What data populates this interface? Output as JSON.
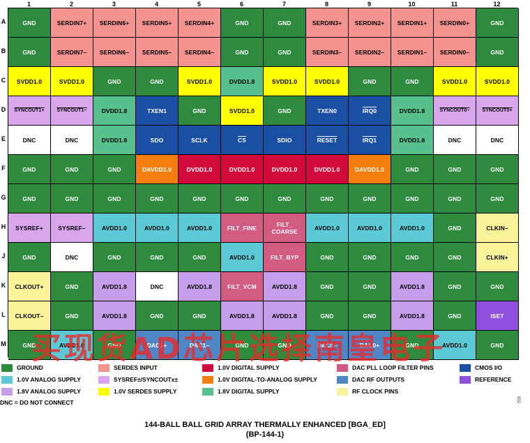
{
  "columns": [
    "1",
    "2",
    "3",
    "4",
    "5",
    "6",
    "7",
    "8",
    "9",
    "10",
    "11",
    "12"
  ],
  "rows": [
    "A",
    "B",
    "C",
    "D",
    "E",
    "F",
    "G",
    "H",
    "J",
    "K",
    "L",
    "M"
  ],
  "colors": {
    "ground": "#2e8b3e",
    "serdes_input": "#f4938f",
    "digital_1v0": "#d20a3c",
    "dac_pll_loop_filter": "#d35a80",
    "cmos_io": "#1b4fa3",
    "analog_1v0": "#5bc9d6",
    "sysref_syncout": "#d9a6ee",
    "dac_digital_1v0": "#f57f0e",
    "dac_rf_outputs": "#4f86c6",
    "reference": "#9050df",
    "analog_1v8": "#c59de8",
    "serdes_supply_1v0": "#ffff00",
    "digital_1v8": "#58c08c",
    "rf_clock": "#fbf39a",
    "dnc": "#ffffff"
  },
  "grid": [
    [
      {
        "t": "GND",
        "c": "ground"
      },
      {
        "t": "SERDIN7+",
        "c": "serdes_input"
      },
      {
        "t": "SERDIN6+",
        "c": "serdes_input"
      },
      {
        "t": "SERDIN5+",
        "c": "serdes_input"
      },
      {
        "t": "SERDIN4+",
        "c": "serdes_input"
      },
      {
        "t": "GND",
        "c": "ground"
      },
      {
        "t": "GND",
        "c": "ground"
      },
      {
        "t": "SERDIN3+",
        "c": "serdes_input"
      },
      {
        "t": "SERDIN2+",
        "c": "serdes_input"
      },
      {
        "t": "SERDIN1+",
        "c": "serdes_input"
      },
      {
        "t": "SERDIN0+",
        "c": "serdes_input"
      },
      {
        "t": "GND",
        "c": "ground"
      }
    ],
    [
      {
        "t": "GND",
        "c": "ground"
      },
      {
        "t": "SERDIN7–",
        "c": "serdes_input"
      },
      {
        "t": "SERDIN6–",
        "c": "serdes_input"
      },
      {
        "t": "SERDIN5–",
        "c": "serdes_input"
      },
      {
        "t": "SERDIN4–",
        "c": "serdes_input"
      },
      {
        "t": "GND",
        "c": "ground"
      },
      {
        "t": "GND",
        "c": "ground"
      },
      {
        "t": "SERDIN3–",
        "c": "serdes_input"
      },
      {
        "t": "SERDIN2–",
        "c": "serdes_input"
      },
      {
        "t": "SERDIN1–",
        "c": "serdes_input"
      },
      {
        "t": "SERDIN0–",
        "c": "serdes_input"
      },
      {
        "t": "GND",
        "c": "ground"
      }
    ],
    [
      {
        "t": "SVDD1.0",
        "c": "serdes_supply_1v0"
      },
      {
        "t": "SVDD1.0",
        "c": "serdes_supply_1v0"
      },
      {
        "t": "GND",
        "c": "ground"
      },
      {
        "t": "GND",
        "c": "ground"
      },
      {
        "t": "SVDD1.0",
        "c": "serdes_supply_1v0"
      },
      {
        "t": "DVDD1.8",
        "c": "digital_1v8"
      },
      {
        "t": "SVDD1.0",
        "c": "serdes_supply_1v0"
      },
      {
        "t": "SVDD1.0",
        "c": "serdes_supply_1v0"
      },
      {
        "t": "GND",
        "c": "ground"
      },
      {
        "t": "GND",
        "c": "ground"
      },
      {
        "t": "SVDD1.0",
        "c": "serdes_supply_1v0"
      },
      {
        "t": "SVDD1.0",
        "c": "serdes_supply_1v0"
      }
    ],
    [
      {
        "t": "SYNCOUT1+",
        "c": "sysref_syncout",
        "ovl": true,
        "small": true
      },
      {
        "t": "SYNCOUT1–",
        "c": "sysref_syncout",
        "ovl": true,
        "small": true
      },
      {
        "t": "DVDD1.8",
        "c": "digital_1v8"
      },
      {
        "t": "TXEN1",
        "c": "cmos_io"
      },
      {
        "t": "GND",
        "c": "ground"
      },
      {
        "t": "SVDD1.0",
        "c": "serdes_supply_1v0"
      },
      {
        "t": "GND",
        "c": "ground"
      },
      {
        "t": "TXEN0",
        "c": "cmos_io"
      },
      {
        "t": "IRQ0",
        "c": "cmos_io",
        "ovl": true
      },
      {
        "t": "DVDD1.8",
        "c": "digital_1v8"
      },
      {
        "t": "SYNCOUT0–",
        "c": "sysref_syncout",
        "ovl": true,
        "small": true
      },
      {
        "t": "SYNCOUT0+",
        "c": "sysref_syncout",
        "ovl": true,
        "small": true
      }
    ],
    [
      {
        "t": "DNC",
        "c": "dnc"
      },
      {
        "t": "DNC",
        "c": "dnc"
      },
      {
        "t": "DVDD1.8",
        "c": "digital_1v8"
      },
      {
        "t": "SDO",
        "c": "cmos_io"
      },
      {
        "t": "SCLK",
        "c": "cmos_io"
      },
      {
        "t": "CS",
        "c": "cmos_io",
        "ovl": true
      },
      {
        "t": "SDIO",
        "c": "cmos_io"
      },
      {
        "t": "RESET",
        "c": "cmos_io",
        "ovl": true
      },
      {
        "t": "IRQ1",
        "c": "cmos_io",
        "ovl": true
      },
      {
        "t": "DVDD1.8",
        "c": "digital_1v8"
      },
      {
        "t": "DNC",
        "c": "dnc"
      },
      {
        "t": "DNC",
        "c": "dnc"
      }
    ],
    [
      {
        "t": "GND",
        "c": "ground"
      },
      {
        "t": "GND",
        "c": "ground"
      },
      {
        "t": "GND",
        "c": "ground"
      },
      {
        "t": "DAVDD1.0",
        "c": "dac_digital_1v0"
      },
      {
        "t": "DVDD1.0",
        "c": "digital_1v0"
      },
      {
        "t": "DVDD1.0",
        "c": "digital_1v0"
      },
      {
        "t": "DVDD1.0",
        "c": "digital_1v0"
      },
      {
        "t": "DVDD1.0",
        "c": "digital_1v0"
      },
      {
        "t": "DAVDD1.0",
        "c": "dac_digital_1v0"
      },
      {
        "t": "GND",
        "c": "ground"
      },
      {
        "t": "GND",
        "c": "ground"
      },
      {
        "t": "GND",
        "c": "ground"
      }
    ],
    [
      {
        "t": "GND",
        "c": "ground"
      },
      {
        "t": "GND",
        "c": "ground"
      },
      {
        "t": "GND",
        "c": "ground"
      },
      {
        "t": "GND",
        "c": "ground"
      },
      {
        "t": "GND",
        "c": "ground"
      },
      {
        "t": "GND",
        "c": "ground"
      },
      {
        "t": "GND",
        "c": "ground"
      },
      {
        "t": "GND",
        "c": "ground"
      },
      {
        "t": "GND",
        "c": "ground"
      },
      {
        "t": "GND",
        "c": "ground"
      },
      {
        "t": "GND",
        "c": "ground"
      },
      {
        "t": "GND",
        "c": "ground"
      }
    ],
    [
      {
        "t": "SYSREF+",
        "c": "sysref_syncout"
      },
      {
        "t": "SYSREF–",
        "c": "sysref_syncout"
      },
      {
        "t": "AVDD1.0",
        "c": "analog_1v0"
      },
      {
        "t": "AVDD1.0",
        "c": "analog_1v0"
      },
      {
        "t": "AVDD1.0",
        "c": "analog_1v0"
      },
      {
        "t": "FILT_FINE",
        "c": "dac_pll_loop_filter"
      },
      {
        "t": "FILT_\nCOARSE",
        "c": "dac_pll_loop_filter"
      },
      {
        "t": "AVDD1.0",
        "c": "analog_1v0"
      },
      {
        "t": "AVDD1.0",
        "c": "analog_1v0"
      },
      {
        "t": "AVDD1.0",
        "c": "analog_1v0"
      },
      {
        "t": "GND",
        "c": "ground"
      },
      {
        "t": "CLKIN–",
        "c": "rf_clock"
      }
    ],
    [
      {
        "t": "GND",
        "c": "ground"
      },
      {
        "t": "DNC",
        "c": "dnc"
      },
      {
        "t": "GND",
        "c": "ground"
      },
      {
        "t": "GND",
        "c": "ground"
      },
      {
        "t": "GND",
        "c": "ground"
      },
      {
        "t": "AVDD1.0",
        "c": "analog_1v0"
      },
      {
        "t": "FILT_BYP",
        "c": "dac_pll_loop_filter"
      },
      {
        "t": "GND",
        "c": "ground"
      },
      {
        "t": "GND",
        "c": "ground"
      },
      {
        "t": "GND",
        "c": "ground"
      },
      {
        "t": "GND",
        "c": "ground"
      },
      {
        "t": "CLKIN+",
        "c": "rf_clock"
      }
    ],
    [
      {
        "t": "CLKOUT+",
        "c": "rf_clock"
      },
      {
        "t": "GND",
        "c": "ground"
      },
      {
        "t": "AVDD1.8",
        "c": "analog_1v8"
      },
      {
        "t": "DNC",
        "c": "dnc"
      },
      {
        "t": "AVDD1.8",
        "c": "analog_1v8"
      },
      {
        "t": "FILT_VCM",
        "c": "dac_pll_loop_filter"
      },
      {
        "t": "AVDD1.8",
        "c": "analog_1v8"
      },
      {
        "t": "GND",
        "c": "ground"
      },
      {
        "t": "GND",
        "c": "ground"
      },
      {
        "t": "AVDD1.8",
        "c": "analog_1v8"
      },
      {
        "t": "GND",
        "c": "ground"
      },
      {
        "t": "GND",
        "c": "ground"
      }
    ],
    [
      {
        "t": "CLKOUT–",
        "c": "rf_clock"
      },
      {
        "t": "GND",
        "c": "ground"
      },
      {
        "t": "AVDD1.8",
        "c": "analog_1v8"
      },
      {
        "t": "GND",
        "c": "ground"
      },
      {
        "t": "GND",
        "c": "ground"
      },
      {
        "t": "AVDD1.8",
        "c": "analog_1v8"
      },
      {
        "t": "AVDD1.8",
        "c": "analog_1v8"
      },
      {
        "t": "GND",
        "c": "ground"
      },
      {
        "t": "GND",
        "c": "ground"
      },
      {
        "t": "AVDD1.8",
        "c": "analog_1v8"
      },
      {
        "t": "GND",
        "c": "ground"
      },
      {
        "t": "ISET",
        "c": "reference"
      }
    ],
    [
      {
        "t": "GND",
        "c": "ground"
      },
      {
        "t": "AVDD1.0",
        "c": "analog_1v0"
      },
      {
        "t": "GND",
        "c": "ground"
      },
      {
        "t": "DAC1+",
        "c": "dac_rf_outputs"
      },
      {
        "t": "DAC1–",
        "c": "dac_rf_outputs"
      },
      {
        "t": "GND",
        "c": "ground"
      },
      {
        "t": "GND",
        "c": "ground"
      },
      {
        "t": "DAC0–",
        "c": "dac_rf_outputs"
      },
      {
        "t": "DAC0+",
        "c": "dac_rf_outputs"
      },
      {
        "t": "GND",
        "c": "ground"
      },
      {
        "t": "AVDD1.0",
        "c": "analog_1v0"
      },
      {
        "t": "GND",
        "c": "ground"
      }
    ]
  ],
  "legend": [
    {
      "label": "GROUND",
      "c": "ground"
    },
    {
      "label": "SERDES INPUT",
      "c": "serdes_input"
    },
    {
      "label": "1.0V DIGITAL SUPPLY",
      "c": "digital_1v0"
    },
    {
      "label": "DAC PLL LOOP FILTER PINS",
      "c": "dac_pll_loop_filter"
    },
    {
      "label": "CMOS I/O",
      "c": "cmos_io"
    },
    {
      "label": "1.0V ANALOG SUPPLY",
      "c": "analog_1v0"
    },
    {
      "label": "SYSREF±/SYNCOUTx±",
      "c": "sysref_syncout"
    },
    {
      "label": "1.0V DIGITAL-TO-ANALOG SUPPLY",
      "c": "dac_digital_1v0"
    },
    {
      "label": "DAC RF OUTPUTS",
      "c": "dac_rf_outputs"
    },
    {
      "label": "REFERENCE",
      "c": "reference"
    },
    {
      "label": "1.8V ANALOG SUPPLY",
      "c": "analog_1v8"
    },
    {
      "label": "1.0V SERDES SUPPLY",
      "c": "serdes_supply_1v0"
    },
    {
      "label": "1.8V DIGITAL SUPPLY",
      "c": "digital_1v8"
    },
    {
      "label": "RF CLOCK PINS",
      "c": "rf_clock"
    }
  ],
  "dnc_note": "DNC = DO NOT CONNECT",
  "watermark": "买现货AD芯片选择南皇电子",
  "side_id": "002",
  "title_line1": "144-BALL BALL GRID ARRAY THERMALLY ENHANCED [BGA_ED]",
  "title_line2": "(BP-144-1)"
}
